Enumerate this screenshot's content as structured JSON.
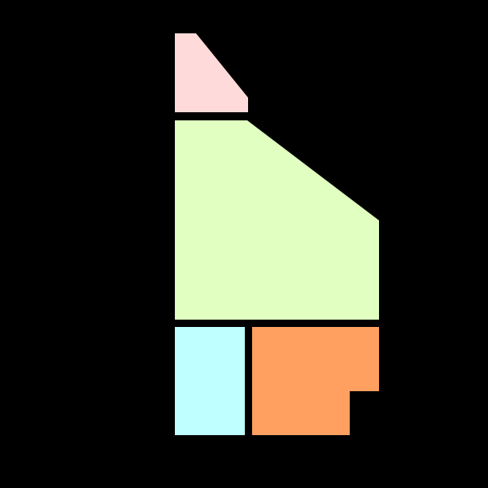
{
  "background_color": "#000000",
  "regions": [
    {
      "name": "pink-region",
      "color": "#FFDADA"
    },
    {
      "name": "green-region",
      "color": "#E0FFC0"
    },
    {
      "name": "cyan-region",
      "color": "#C0FFFF"
    },
    {
      "name": "orange-region",
      "color": "#FFA060"
    }
  ]
}
